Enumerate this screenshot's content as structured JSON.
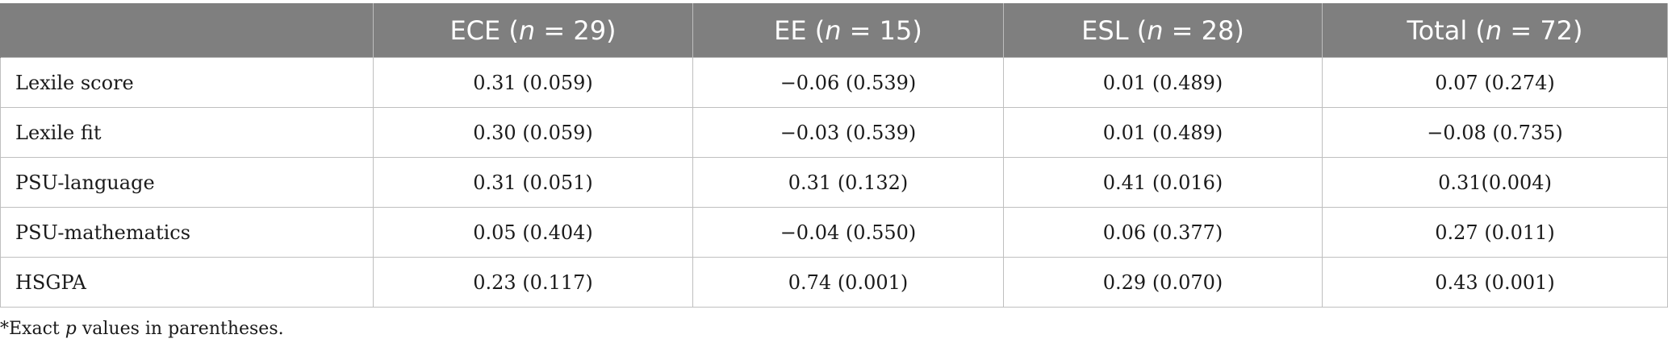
{
  "table": {
    "headers": [
      {
        "group": "",
        "n": ""
      },
      {
        "group": "ECE",
        "n": "29"
      },
      {
        "group": "EE",
        "n": "15"
      },
      {
        "group": "ESL",
        "n": "28"
      },
      {
        "group": "Total",
        "n": "72"
      }
    ],
    "rows": [
      {
        "label": "Lexile score",
        "cells": [
          "0.31 (0.059)",
          "−0.06 (0.539)",
          "0.01 (0.489)",
          "0.07 (0.274)"
        ]
      },
      {
        "label": "Lexile fit",
        "cells": [
          "0.30 (0.059)",
          "−0.03 (0.539)",
          "0.01 (0.489)",
          "−0.08 (0.735)"
        ]
      },
      {
        "label": "PSU-language",
        "cells": [
          "0.31 (0.051)",
          "0.31 (0.132)",
          "0.41 (0.016)",
          "0.31(0.004)"
        ]
      },
      {
        "label": "PSU-mathematics",
        "cells": [
          "0.05 (0.404)",
          "−0.04 (0.550)",
          "0.06 (0.377)",
          "0.27 (0.011)"
        ]
      },
      {
        "label": "HSGPA",
        "cells": [
          "0.23 (0.117)",
          "0.74 (0.001)",
          "0.29 (0.070)",
          "0.43 (0.001)"
        ]
      }
    ]
  },
  "footnote": {
    "prefix": "*Exact ",
    "italic": "p",
    "suffix": " values in parentheses."
  }
}
